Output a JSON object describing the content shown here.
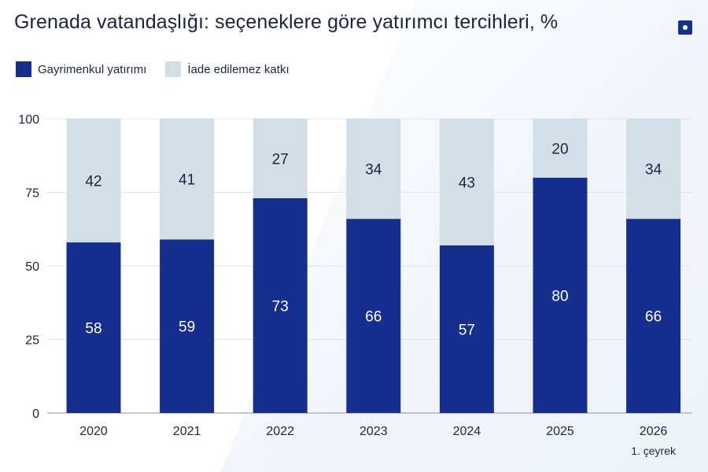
{
  "title": "Grenada vatandaşlığı: seçeneklere göre yatırımcı tercihleri, %",
  "logo": "square-dot-icon",
  "legend": [
    {
      "label": "Gayrimenkul yatırımı",
      "color": "#162f8f"
    },
    {
      "label": "İade edilemez katkı",
      "color": "#d3dfe6"
    }
  ],
  "chart_data": {
    "type": "bar",
    "stacked": true,
    "categories": [
      "2020",
      "2021",
      "2022",
      "2023",
      "2024",
      "2025",
      "2026"
    ],
    "category_sublabels": [
      "",
      "",
      "",
      "",
      "",
      "",
      "1. çeyrek"
    ],
    "series": [
      {
        "name": "Gayrimenkul yatırımı",
        "values": [
          58,
          59,
          73,
          66,
          57,
          80,
          66
        ],
        "color": "#162f8f",
        "label_color": "#ffffff"
      },
      {
        "name": "İade edilemez katkı",
        "values": [
          42,
          41,
          27,
          34,
          43,
          20,
          34
        ],
        "color": "#d3dfe6",
        "label_color": "#1b2440"
      }
    ],
    "ylim": [
      0,
      100
    ],
    "yticks": [
      0,
      25,
      50,
      75,
      100
    ],
    "grid": true,
    "legend_position": "top-left"
  }
}
